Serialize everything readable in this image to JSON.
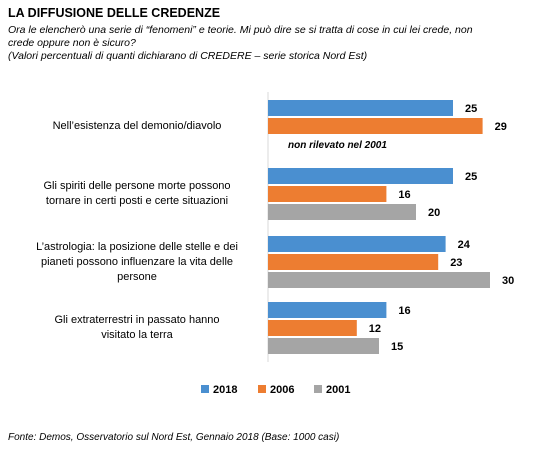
{
  "title": "LA DIFFUSIONE DELLE CREDENZE",
  "subtitle": "Ora le elencherò una serie di “fenomeni” e teorie. Mi può dire se si tratta di cose in cui lei crede, non\ncrede oppure non è sicuro?\n(Valori percentuali di quanti dichiarano di CREDERE – serie storica Nord Est)",
  "footer": "Fonte: Demos, Osservatorio sul Nord Est, Gennaio  2018 (Base: 1000 casi)",
  "chart_data": {
    "type": "bar",
    "orientation": "horizontal",
    "categories": [
      "Nell’esistenza del demonio/diavolo",
      "Gli spiriti delle persone morte possono\ntornare in certi posti e certe situazioni",
      "L’astrologia: la posizione delle stelle e dei\npianeti possono influenzare la vita delle\npersone",
      "Gli extraterrestri in passato hanno\nvisitato la terra"
    ],
    "series": [
      {
        "name": "2018",
        "color": "#4a8fd0",
        "values": [
          25,
          25,
          24,
          16
        ]
      },
      {
        "name": "2006",
        "color": "#ed7d31",
        "values": [
          29,
          16,
          23,
          12
        ]
      },
      {
        "name": "2001",
        "color": "#a5a5a5",
        "values": [
          null,
          20,
          30,
          15
        ]
      }
    ],
    "missing_note": "non rilevato nel 2001",
    "legend_position": "bottom",
    "grid": false
  }
}
